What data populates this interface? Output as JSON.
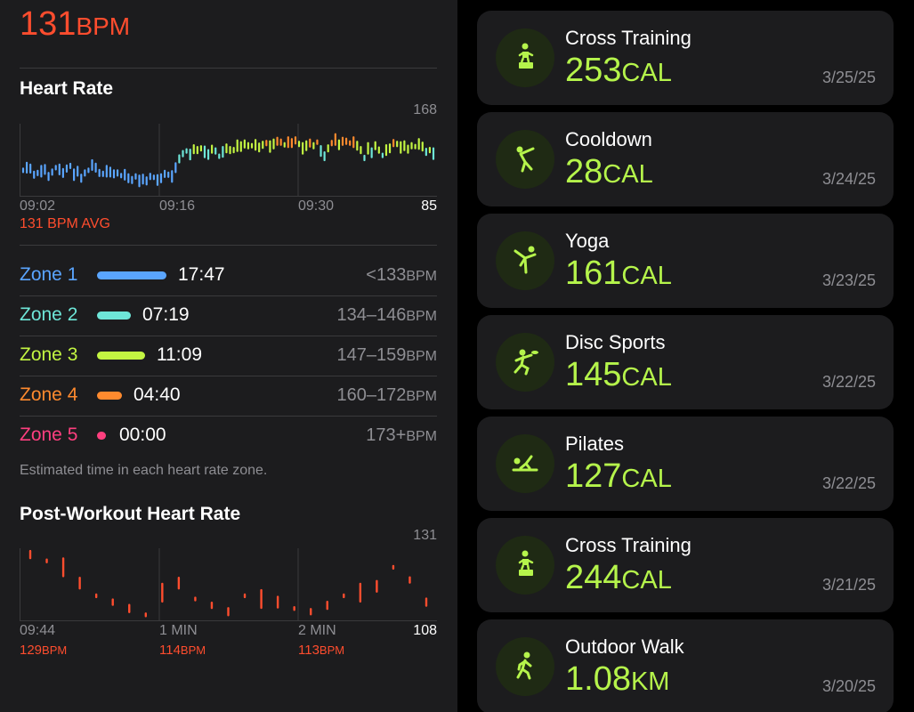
{
  "header": {
    "value": "131",
    "unit": "BPM"
  },
  "heart_rate": {
    "title": "Heart Rate",
    "ymax_label": "168",
    "ymin_label": "85",
    "x_labels": [
      "09:02",
      "09:16",
      "09:30"
    ],
    "avg_label": "131 BPM AVG"
  },
  "zones": [
    {
      "name": "Zone 1",
      "time": "17:47",
      "range": "<133",
      "unit": "BPM",
      "color": "#5aa5ff"
    },
    {
      "name": "Zone 2",
      "time": "07:19",
      "range": "134–146",
      "unit": "BPM",
      "color": "#6ee6d8"
    },
    {
      "name": "Zone 3",
      "time": "11:09",
      "range": "147–159",
      "unit": "BPM",
      "color": "#c3f542"
    },
    {
      "name": "Zone 4",
      "time": "04:40",
      "range": "160–172",
      "unit": "BPM",
      "color": "#ff8a2e"
    },
    {
      "name": "Zone 5",
      "time": "00:00",
      "range": "173+",
      "unit": "BPM",
      "color": "#ff3f7f"
    }
  ],
  "zones_note": "Estimated time in each heart rate zone.",
  "post_workout": {
    "title": "Post-Workout Heart Rate",
    "ymax_label": "131",
    "ymin_label": "108",
    "x_labels": [
      "09:44",
      "1 MIN",
      "2 MIN"
    ],
    "readings": [
      {
        "value": "129",
        "unit": "BPM"
      },
      {
        "value": "114",
        "unit": "BPM"
      },
      {
        "value": "113",
        "unit": "BPM"
      }
    ]
  },
  "workouts": [
    {
      "name": "Cross Training",
      "value": "253",
      "unit": "CAL",
      "date": "3/25/25",
      "icon": "cross-training-icon"
    },
    {
      "name": "Cooldown",
      "value": "28",
      "unit": "CAL",
      "date": "3/24/25",
      "icon": "cooldown-icon"
    },
    {
      "name": "Yoga",
      "value": "161",
      "unit": "CAL",
      "date": "3/23/25",
      "icon": "yoga-icon"
    },
    {
      "name": "Disc Sports",
      "value": "145",
      "unit": "CAL",
      "date": "3/22/25",
      "icon": "disc-sports-icon"
    },
    {
      "name": "Pilates",
      "value": "127",
      "unit": "CAL",
      "date": "3/22/25",
      "icon": "pilates-icon"
    },
    {
      "name": "Cross Training",
      "value": "244",
      "unit": "CAL",
      "date": "3/21/25",
      "icon": "cross-training-icon"
    },
    {
      "name": "Outdoor Walk",
      "value": "1.08",
      "unit": "KM",
      "date": "3/20/25",
      "icon": "outdoor-walk-icon"
    }
  ],
  "colors": {
    "accent_red": "#ff4d2e",
    "workout_green": "#b5f44b"
  },
  "chart_data": [
    {
      "type": "bar",
      "title": "Heart Rate",
      "ylim": [
        85,
        168
      ],
      "x_tick_labels": [
        "09:02",
        "09:16",
        "09:30"
      ],
      "values": [
        115,
        118,
        117,
        110,
        112,
        114,
        116,
        108,
        113,
        118,
        116,
        112,
        117,
        120,
        110,
        114,
        106,
        112,
        115,
        121,
        118,
        112,
        111,
        114,
        113,
        111,
        112,
        109,
        110,
        106,
        104,
        108,
        103,
        105,
        103,
        108,
        107,
        104,
        106,
        111,
        110,
        108,
        118,
        128,
        134,
        137,
        133,
        139,
        138,
        140,
        136,
        133,
        139,
        137,
        131,
        136,
        140,
        138,
        138,
        143,
        142,
        145,
        143,
        143,
        144,
        141,
        144,
        146,
        142,
        145,
        148,
        147,
        144,
        147,
        146,
        149,
        145,
        140,
        143,
        146,
        143,
        147,
        137,
        131,
        140,
        146,
        150,
        144,
        148,
        148,
        146,
        147,
        143,
        138,
        129,
        140,
        135,
        143,
        138,
        132,
        138,
        140,
        146,
        145,
        141,
        143,
        139,
        143,
        142,
        145,
        142,
        136,
        138,
        134
      ],
      "series_colors": [
        "#5aa5ff",
        "#6ee6d8",
        "#c3f542",
        "#ff8a2e"
      ]
    },
    {
      "type": "bar",
      "title": "Post-Workout Heart Rate",
      "ylim": [
        108,
        131
      ],
      "x_tick_labels": [
        "09:44",
        "1 MIN",
        "2 MIN"
      ],
      "values": [
        129,
        127,
        125,
        120,
        116,
        114,
        112,
        110,
        117,
        120,
        115,
        113,
        111,
        116,
        115,
        114,
        112,
        111,
        113,
        116,
        117,
        119,
        125,
        121,
        114
      ],
      "color": "#ff4d2e"
    }
  ]
}
